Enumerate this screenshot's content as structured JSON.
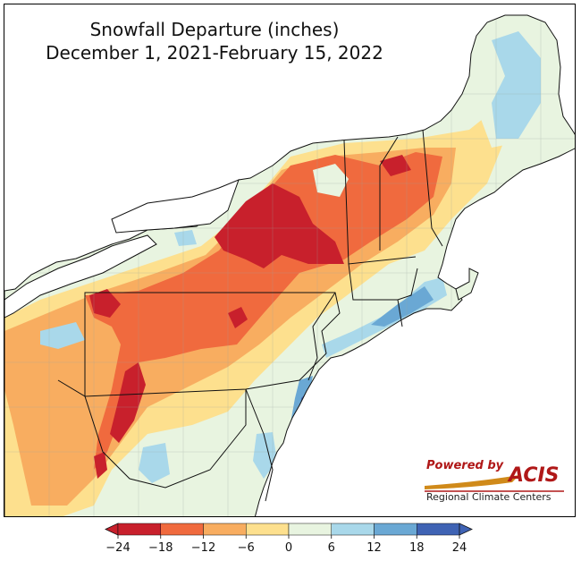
{
  "title": {
    "line1": "Snowfall Departure (inches)",
    "line2": "December 1, 2021-February 15, 2022"
  },
  "logo": {
    "powered_by": "Powered by",
    "acis": "ACIS",
    "regional": "Regional Climate Centers"
  },
  "colorbar": {
    "ticks": [
      "−24",
      "−18",
      "−12",
      "−6",
      "0",
      "6",
      "12",
      "18",
      "24"
    ],
    "bins": [
      {
        "min": -24,
        "max": -18,
        "color": "#c8202c"
      },
      {
        "min": -18,
        "max": -12,
        "color": "#f06a3e"
      },
      {
        "min": -12,
        "max": -6,
        "color": "#f8ad60"
      },
      {
        "min": -6,
        "max": 0,
        "color": "#fde08e"
      },
      {
        "min": 0,
        "max": 6,
        "color": "#e8f4e0"
      },
      {
        "min": 6,
        "max": 12,
        "color": "#a9d8ea"
      },
      {
        "min": 12,
        "max": 18,
        "color": "#6aa8d4"
      },
      {
        "min": 18,
        "max": 24,
        "color": "#3f63b4"
      }
    ],
    "below_color": "#c8202c",
    "above_color": "#3f63b4"
  },
  "colors": {
    "lake": "#ffffff",
    "ocean": "#ffffff",
    "border": "#111111"
  }
}
